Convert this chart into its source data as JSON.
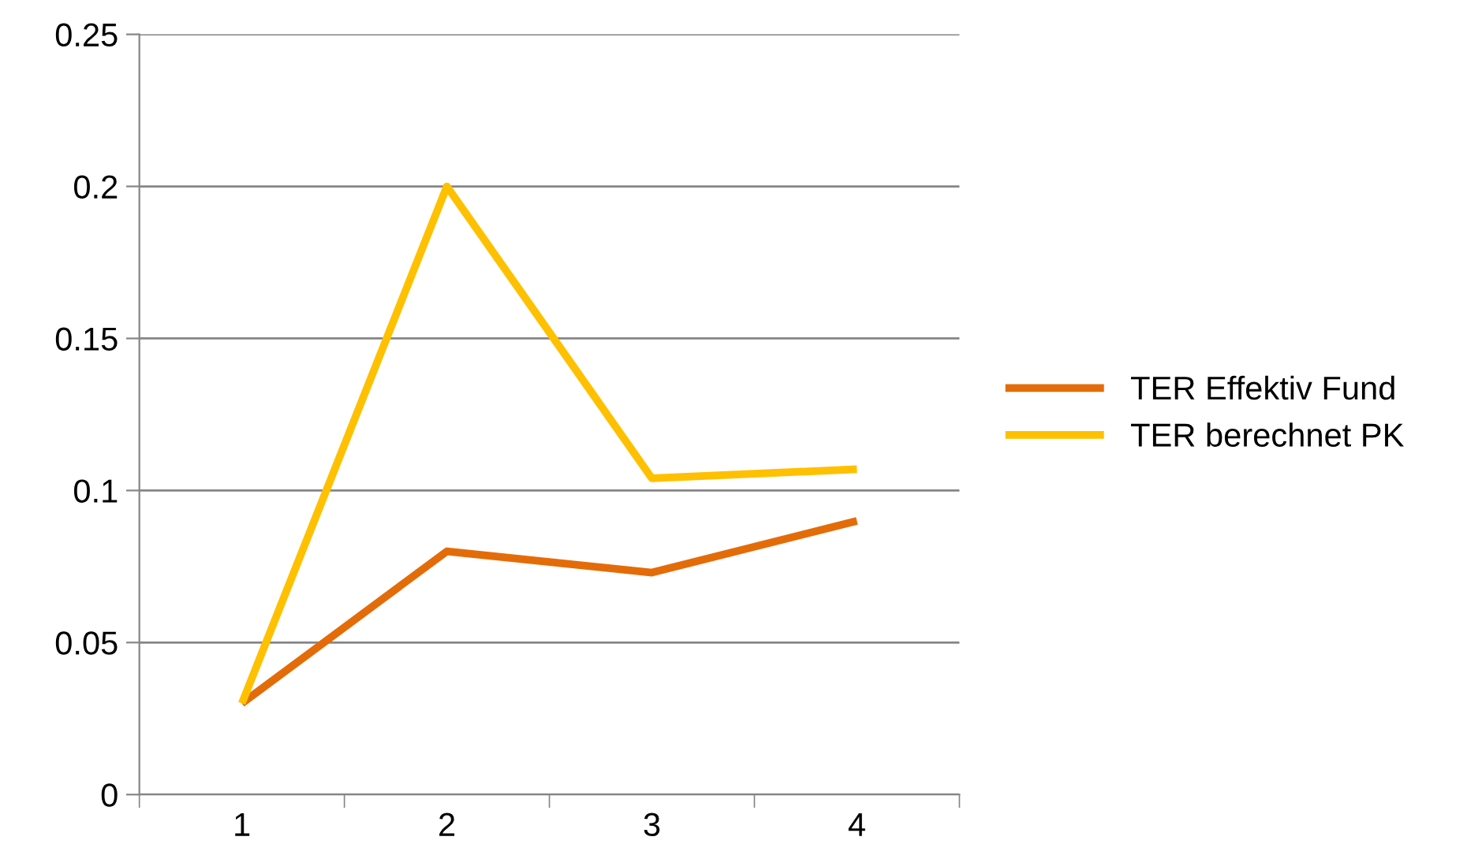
{
  "chart_data": {
    "type": "line",
    "categories": [
      "1",
      "2",
      "3",
      "4"
    ],
    "series": [
      {
        "name": "TER Effektiv Fund",
        "color": "#e36c09",
        "values": [
          0.03,
          0.08,
          0.073,
          0.09
        ]
      },
      {
        "name": "TER berechnet PK",
        "color": "#ffc000",
        "values": [
          0.03,
          0.2,
          0.104,
          0.107
        ]
      }
    ],
    "ylim": [
      0,
      0.25
    ],
    "yticks": [
      0,
      0.05,
      0.1,
      0.15,
      0.2,
      0.25
    ],
    "grid": "y",
    "legend": "right",
    "marker": "none",
    "line_style": "solid"
  }
}
